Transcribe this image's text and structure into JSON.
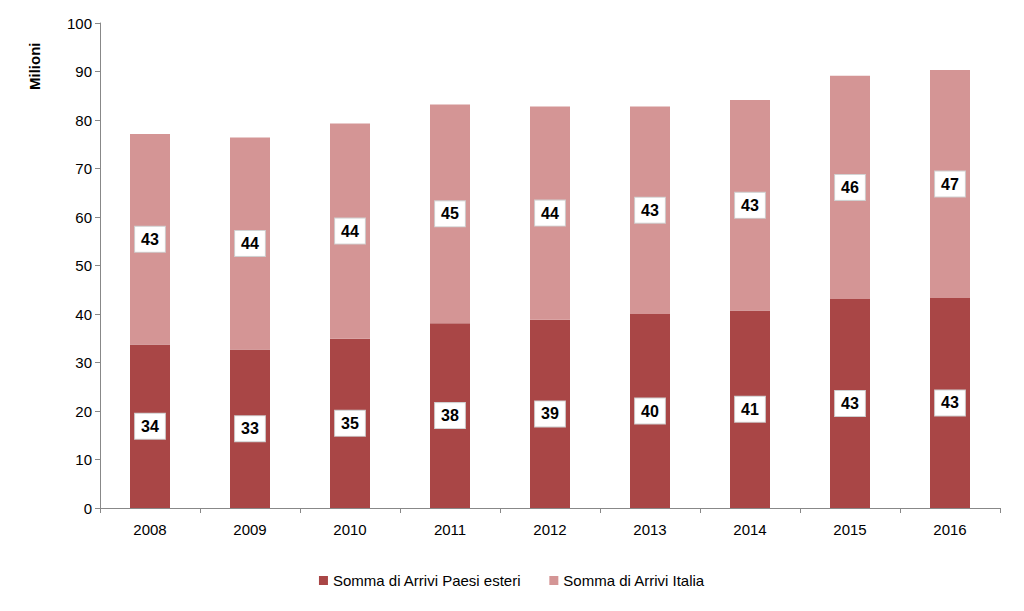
{
  "chart_data": {
    "type": "bar",
    "y_label": "Milioni",
    "categories": [
      "2008",
      "2009",
      "2010",
      "2011",
      "2012",
      "2013",
      "2014",
      "2015",
      "2016"
    ],
    "series": [
      {
        "name": "Somma di Arrivi Paesi esteri",
        "color": "#a94646",
        "values": [
          33.7,
          32.7,
          34.9,
          38.1,
          38.8,
          40.0,
          40.7,
          43.1,
          43.3
        ],
        "value_labels": [
          "34",
          "33",
          "35",
          "38",
          "39",
          "40",
          "41",
          "43",
          "43"
        ]
      },
      {
        "name": "Somma di Arrivi Italia",
        "color": "#d49595",
        "values": [
          43.4,
          43.7,
          44.4,
          45.1,
          44.0,
          42.8,
          43.4,
          46.0,
          47.0
        ],
        "value_labels": [
          "43",
          "44",
          "44",
          "45",
          "44",
          "43",
          "43",
          "46",
          "47"
        ]
      }
    ],
    "stacked": true,
    "data_labels": true,
    "ylim": [
      0,
      100
    ],
    "yticks": [
      0,
      10,
      20,
      30,
      40,
      50,
      60,
      70,
      80,
      90,
      100
    ],
    "grid": false,
    "legend": "bottom"
  }
}
